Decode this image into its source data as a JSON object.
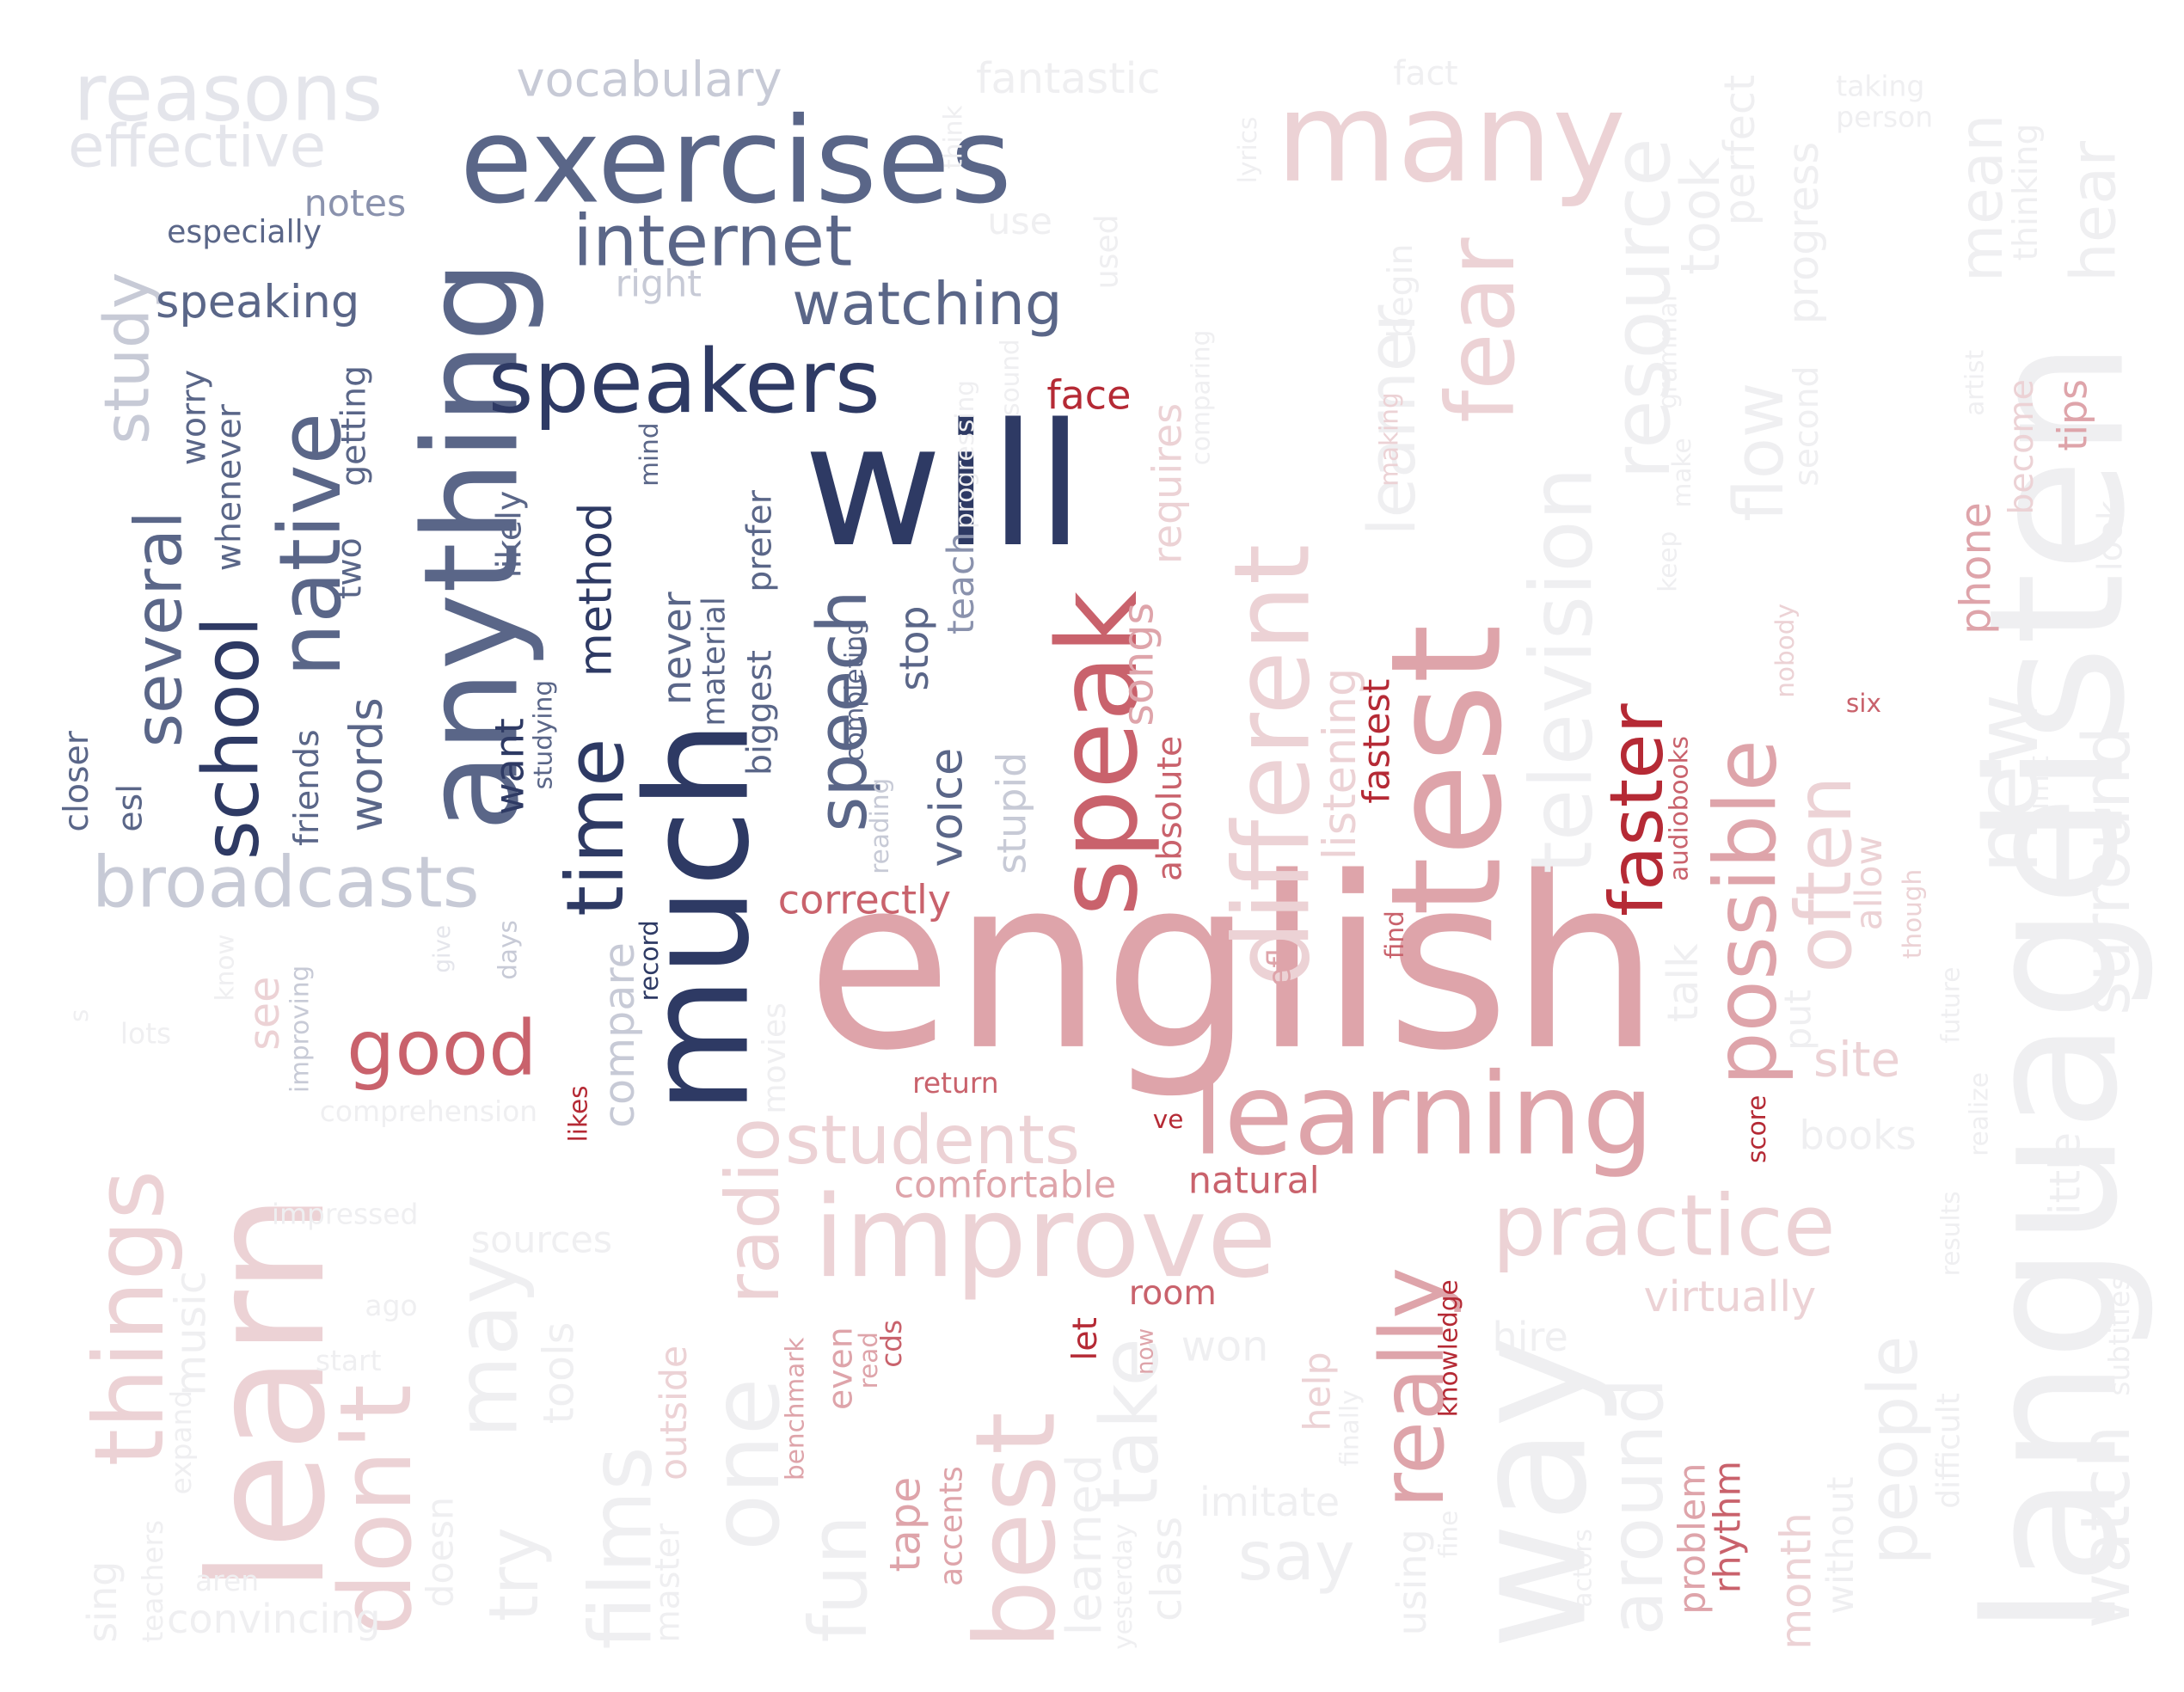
{
  "palette": {
    "navy": "#2e3a64",
    "slate": "#5a6688",
    "steel": "#8a92ad",
    "mist": "#c7cad6",
    "haze": "#e4e5eb",
    "crimson": "#b52a35",
    "rose": "#c9626c",
    "blush": "#dea4aa",
    "petal": "#ecd2d5",
    "fog": "#efeff1"
  },
  "words": [
    {
      "text": "english",
      "c": "blush"
    },
    {
      "text": "exercises",
      "c": "slate"
    },
    {
      "text": "will",
      "c": "navy"
    },
    {
      "text": "language",
      "c": "fog"
    },
    {
      "text": "listen",
      "c": "fog"
    },
    {
      "text": "many",
      "c": "petal"
    },
    {
      "text": "test",
      "c": "blush"
    },
    {
      "text": "way",
      "c": "fog"
    },
    {
      "text": "learn",
      "c": "petal"
    },
    {
      "text": "much",
      "c": "navy"
    },
    {
      "text": "anything",
      "c": "slate"
    },
    {
      "text": "speakers",
      "c": "navy"
    },
    {
      "text": "improve",
      "c": "petal"
    },
    {
      "text": "learning",
      "c": "blush"
    },
    {
      "text": "speak",
      "c": "rose"
    },
    {
      "text": "different",
      "c": "petal"
    },
    {
      "text": "internet",
      "c": "slate"
    },
    {
      "text": "best",
      "c": "petal"
    },
    {
      "text": "one",
      "c": "fog"
    },
    {
      "text": "don't",
      "c": "petal"
    },
    {
      "text": "things",
      "c": "petal"
    },
    {
      "text": "native",
      "c": "slate"
    },
    {
      "text": "time",
      "c": "navy"
    },
    {
      "text": "speech",
      "c": "slate"
    },
    {
      "text": "school",
      "c": "navy"
    },
    {
      "text": "several",
      "c": "slate"
    },
    {
      "text": "good",
      "c": "rose"
    },
    {
      "text": "really",
      "c": "blush"
    },
    {
      "text": "possible",
      "c": "blush"
    },
    {
      "text": "practice",
      "c": "petal"
    },
    {
      "text": "fear",
      "c": "petal"
    },
    {
      "text": "new",
      "c": "fog"
    },
    {
      "text": "may",
      "c": "fog"
    },
    {
      "text": "radio",
      "c": "petal"
    },
    {
      "text": "reasons",
      "c": "haze"
    },
    {
      "text": "broadcasts",
      "c": "mist"
    },
    {
      "text": "faster",
      "c": "crimson"
    },
    {
      "text": "often",
      "c": "petal"
    },
    {
      "text": "television",
      "c": "fog"
    },
    {
      "text": "resource",
      "c": "fog"
    },
    {
      "text": "surround",
      "c": "fog"
    },
    {
      "text": "watching",
      "c": "slate"
    },
    {
      "text": "students",
      "c": "petal"
    },
    {
      "text": "effective",
      "c": "haze"
    },
    {
      "text": "study",
      "c": "mist"
    },
    {
      "text": "watch",
      "c": "fog"
    },
    {
      "text": "people",
      "c": "fog"
    },
    {
      "text": "around",
      "c": "fog"
    },
    {
      "text": "films",
      "c": "fog"
    },
    {
      "text": "fun",
      "c": "fog"
    },
    {
      "text": "try",
      "c": "fog"
    },
    {
      "text": "vocabulary",
      "c": "mist"
    },
    {
      "text": "mean",
      "c": "fog"
    },
    {
      "text": "hear",
      "c": "fog"
    },
    {
      "text": "learner",
      "c": "fog"
    },
    {
      "text": "flow",
      "c": "fog"
    },
    {
      "text": "take",
      "c": "fog"
    },
    {
      "text": "say",
      "c": "fog"
    },
    {
      "text": "speaking",
      "c": "slate"
    },
    {
      "text": "correctly",
      "c": "rose"
    },
    {
      "text": "natural",
      "c": "rose"
    },
    {
      "text": "comfortable",
      "c": "blush"
    },
    {
      "text": "compare",
      "c": "mist"
    },
    {
      "text": "method",
      "c": "navy"
    },
    {
      "text": "songs",
      "c": "blush"
    },
    {
      "text": "listening",
      "c": "petal"
    },
    {
      "text": "site",
      "c": "petal"
    },
    {
      "text": "phone",
      "c": "blush"
    },
    {
      "text": "voice",
      "c": "slate"
    },
    {
      "text": "words",
      "c": "slate"
    },
    {
      "text": "stop",
      "c": "slate"
    },
    {
      "text": "teach",
      "c": "steel"
    },
    {
      "text": "notes",
      "c": "steel"
    },
    {
      "text": "right",
      "c": "mist"
    },
    {
      "text": "especially",
      "c": "slate"
    },
    {
      "text": "worry",
      "c": "slate"
    },
    {
      "text": "whenever",
      "c": "slate"
    },
    {
      "text": "two",
      "c": "slate"
    },
    {
      "text": "getting",
      "c": "slate"
    },
    {
      "text": "likely",
      "c": "slate"
    },
    {
      "text": "never",
      "c": "slate"
    },
    {
      "text": "material",
      "c": "slate"
    },
    {
      "text": "biggest",
      "c": "slate"
    },
    {
      "text": "prefer",
      "c": "slate"
    },
    {
      "text": "want",
      "c": "navy"
    },
    {
      "text": "studying",
      "c": "slate"
    },
    {
      "text": "completing",
      "c": "slate"
    },
    {
      "text": "friends",
      "c": "slate"
    },
    {
      "text": "closer",
      "c": "slate"
    },
    {
      "text": "esl",
      "c": "slate"
    },
    {
      "text": "mind",
      "c": "slate"
    },
    {
      "text": "face",
      "c": "crimson"
    },
    {
      "text": "fastest",
      "c": "crimson"
    },
    {
      "text": "absolute",
      "c": "rose"
    },
    {
      "text": "stupid",
      "c": "mist"
    },
    {
      "text": "reading",
      "c": "mist"
    },
    {
      "text": "record",
      "c": "navy"
    },
    {
      "text": "days",
      "c": "mist"
    },
    {
      "text": "improving",
      "c": "mist"
    },
    {
      "text": "see",
      "c": "petal"
    },
    {
      "text": "give",
      "c": "haze"
    },
    {
      "text": "return",
      "c": "rose"
    },
    {
      "text": "ve",
      "c": "crimson"
    },
    {
      "text": "likes",
      "c": "crimson"
    },
    {
      "text": "let",
      "c": "crimson"
    },
    {
      "text": "room",
      "c": "rose"
    },
    {
      "text": "now",
      "c": "blush"
    },
    {
      "text": "help",
      "c": "petal"
    },
    {
      "text": "efl",
      "c": "blush"
    },
    {
      "text": "find",
      "c": "rose"
    },
    {
      "text": "knowledge",
      "c": "crimson"
    },
    {
      "text": "score",
      "c": "crimson"
    },
    {
      "text": "six",
      "c": "rose"
    },
    {
      "text": "audiobooks",
      "c": "rose"
    },
    {
      "text": "tips",
      "c": "blush"
    },
    {
      "text": "become",
      "c": "petal"
    },
    {
      "text": "look",
      "c": "fog"
    },
    {
      "text": "virtually",
      "c": "petal"
    },
    {
      "text": "books",
      "c": "fog"
    },
    {
      "text": "talk",
      "c": "fog"
    },
    {
      "text": "put",
      "c": "fog"
    },
    {
      "text": "allow",
      "c": "petal"
    },
    {
      "text": "though",
      "c": "petal"
    },
    {
      "text": "problem",
      "c": "blush"
    },
    {
      "text": "rhythm",
      "c": "rose"
    },
    {
      "text": "month",
      "c": "petal"
    },
    {
      "text": "without",
      "c": "fog"
    },
    {
      "text": "tape",
      "c": "blush"
    },
    {
      "text": "accents",
      "c": "blush"
    },
    {
      "text": "even",
      "c": "blush"
    },
    {
      "text": "read",
      "c": "blush"
    },
    {
      "text": "cds",
      "c": "rose"
    },
    {
      "text": "benchmark",
      "c": "blush"
    },
    {
      "text": "outside",
      "c": "petal"
    },
    {
      "text": "master",
      "c": "fog"
    },
    {
      "text": "tools",
      "c": "fog"
    },
    {
      "text": "doesn",
      "c": "fog"
    },
    {
      "text": "sources",
      "c": "fog"
    },
    {
      "text": "music",
      "c": "fog"
    },
    {
      "text": "impressed",
      "c": "fog"
    },
    {
      "text": "comprehension",
      "c": "fog"
    },
    {
      "text": "lots",
      "c": "fog"
    },
    {
      "text": "ago",
      "c": "fog"
    },
    {
      "text": "start",
      "c": "fog"
    },
    {
      "text": "expand",
      "c": "fog"
    },
    {
      "text": "teachers",
      "c": "fog"
    },
    {
      "text": "sing",
      "c": "fog"
    },
    {
      "text": "convincing",
      "c": "fog"
    },
    {
      "text": "aren",
      "c": "fog"
    },
    {
      "text": "learned",
      "c": "fog"
    },
    {
      "text": "class",
      "c": "fog"
    },
    {
      "text": "yesterday",
      "c": "fog"
    },
    {
      "text": "imitate",
      "c": "fog"
    },
    {
      "text": "finally",
      "c": "fog"
    },
    {
      "text": "using",
      "c": "fog"
    },
    {
      "text": "fine",
      "c": "fog"
    },
    {
      "text": "actors",
      "c": "fog"
    },
    {
      "text": "hire",
      "c": "fog"
    },
    {
      "text": "won",
      "c": "fog"
    },
    {
      "text": "movies",
      "c": "fog"
    },
    {
      "text": "know",
      "c": "fog"
    },
    {
      "text": "s",
      "c": "fog"
    },
    {
      "text": "fantastic",
      "c": "fog"
    },
    {
      "text": "fact",
      "c": "fog"
    },
    {
      "text": "think",
      "c": "fog"
    },
    {
      "text": "lyrics",
      "c": "fog"
    },
    {
      "text": "use",
      "c": "fog"
    },
    {
      "text": "used",
      "c": "fog"
    },
    {
      "text": "progressing",
      "c": "fog"
    },
    {
      "text": "sound",
      "c": "fog"
    },
    {
      "text": "comparing",
      "c": "fog"
    },
    {
      "text": "requires",
      "c": "petal"
    },
    {
      "text": "begin",
      "c": "fog"
    },
    {
      "text": "making",
      "c": "petal"
    },
    {
      "text": "grammar",
      "c": "fog"
    },
    {
      "text": "keep",
      "c": "fog"
    },
    {
      "text": "make",
      "c": "fog"
    },
    {
      "text": "took",
      "c": "fog"
    },
    {
      "text": "perfect",
      "c": "fog"
    },
    {
      "text": "progress",
      "c": "fog"
    },
    {
      "text": "second",
      "c": "fog"
    },
    {
      "text": "taking",
      "c": "fog"
    },
    {
      "text": "person",
      "c": "fog"
    },
    {
      "text": "thinking",
      "c": "fog"
    },
    {
      "text": "artist",
      "c": "fog"
    },
    {
      "text": "nobody",
      "c": "petal"
    },
    {
      "text": "limit",
      "c": "fog"
    },
    {
      "text": "future",
      "c": "fog"
    },
    {
      "text": "realize",
      "c": "fog"
    },
    {
      "text": "little",
      "c": "fog"
    },
    {
      "text": "results",
      "c": "fog"
    },
    {
      "text": "subtitles",
      "c": "fog"
    },
    {
      "text": "difficult",
      "c": "fog"
    }
  ]
}
